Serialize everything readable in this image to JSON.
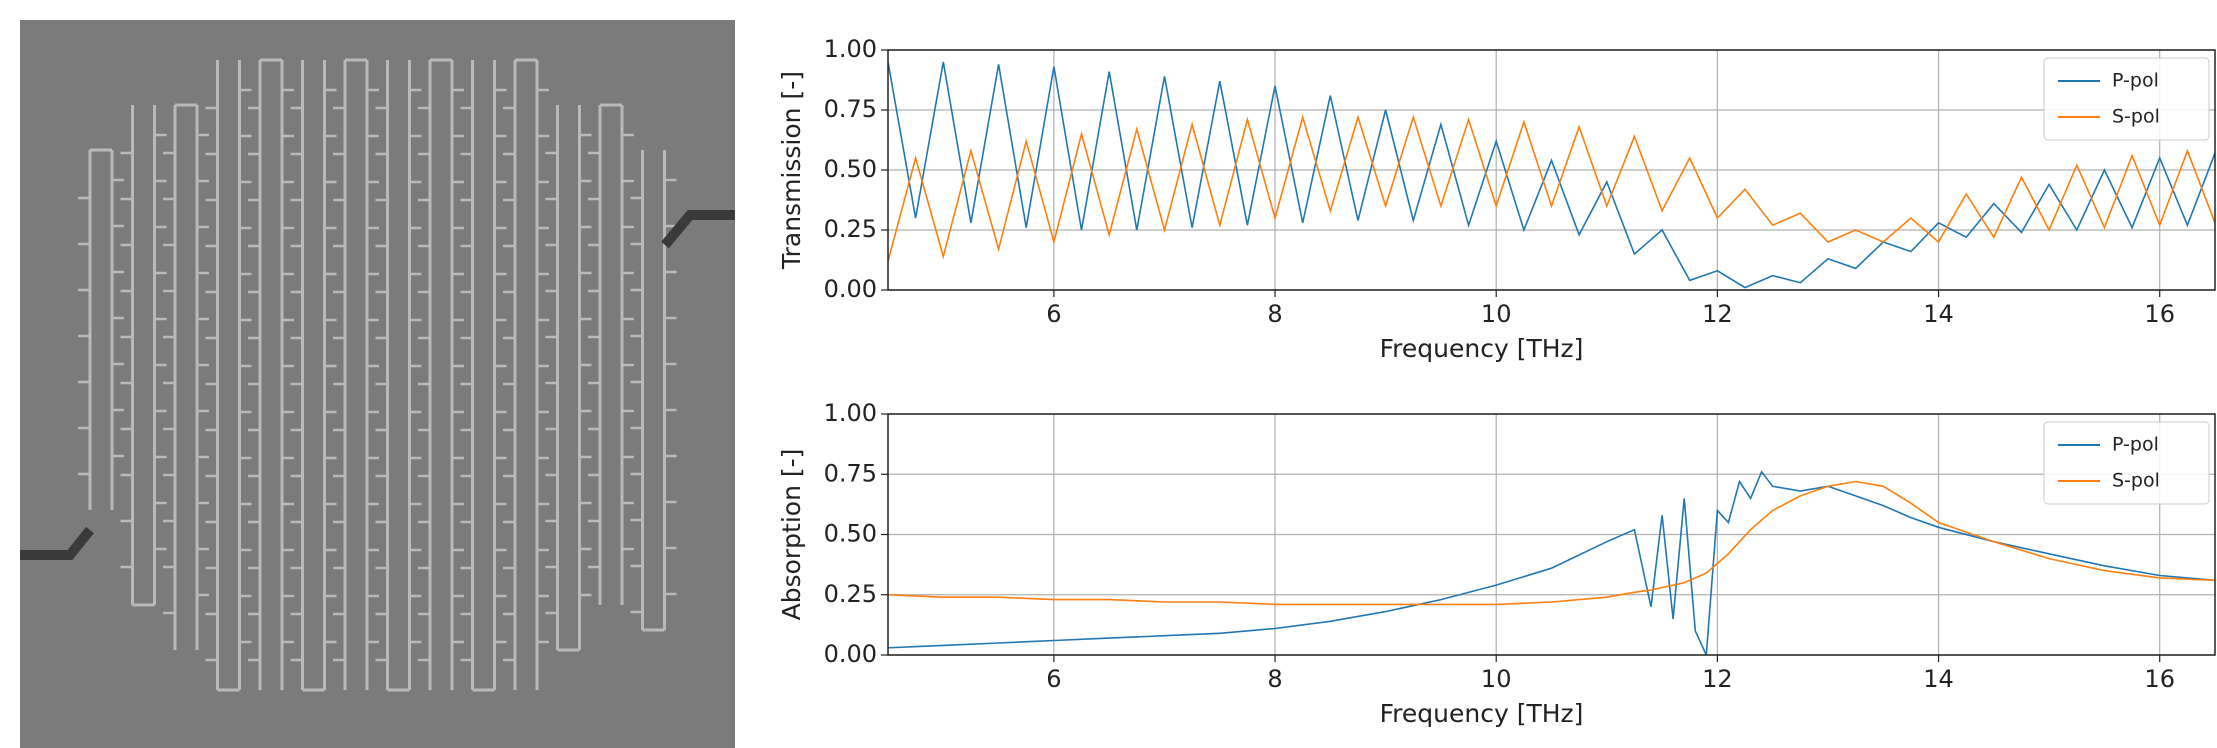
{
  "chart_data": [
    {
      "type": "line",
      "xlabel": "Frequency [THz]",
      "ylabel": "Transmission [-]",
      "x": [
        4.5,
        4.75,
        5,
        5.25,
        5.5,
        5.75,
        6,
        6.25,
        6.5,
        6.75,
        7,
        7.25,
        7.5,
        7.75,
        8,
        8.25,
        8.5,
        8.75,
        9,
        9.25,
        9.5,
        9.75,
        10,
        10.25,
        10.5,
        10.75,
        11,
        11.25,
        11.5,
        11.75,
        12,
        12.25,
        12.5,
        12.75,
        13,
        13.25,
        13.5,
        13.75,
        14,
        14.25,
        14.5,
        14.75,
        15,
        15.25,
        15.5,
        15.75,
        16,
        16.25,
        16.5
      ],
      "series": [
        {
          "name": "P-pol",
          "color": "#1f77b4",
          "values": [
            0.95,
            0.3,
            0.95,
            0.28,
            0.94,
            0.26,
            0.93,
            0.25,
            0.91,
            0.25,
            0.89,
            0.26,
            0.87,
            0.27,
            0.85,
            0.28,
            0.81,
            0.29,
            0.75,
            0.29,
            0.69,
            0.27,
            0.62,
            0.25,
            0.54,
            0.23,
            0.45,
            0.15,
            0.25,
            0.04,
            0.08,
            0.01,
            0.06,
            0.03,
            0.13,
            0.09,
            0.2,
            0.16,
            0.28,
            0.22,
            0.36,
            0.24,
            0.44,
            0.25,
            0.5,
            0.26,
            0.55,
            0.27,
            0.57
          ]
        },
        {
          "name": "S-pol",
          "color": "#ff7f0e",
          "values": [
            0.12,
            0.55,
            0.14,
            0.58,
            0.17,
            0.62,
            0.2,
            0.65,
            0.23,
            0.67,
            0.25,
            0.69,
            0.27,
            0.71,
            0.3,
            0.72,
            0.33,
            0.72,
            0.35,
            0.72,
            0.35,
            0.71,
            0.35,
            0.7,
            0.35,
            0.68,
            0.35,
            0.64,
            0.33,
            0.55,
            0.3,
            0.42,
            0.27,
            0.32,
            0.2,
            0.25,
            0.2,
            0.3,
            0.2,
            0.4,
            0.22,
            0.47,
            0.25,
            0.52,
            0.26,
            0.56,
            0.27,
            0.58,
            0.28
          ]
        }
      ],
      "xlim": [
        4.5,
        16.5
      ],
      "ylim": [
        0,
        1
      ],
      "xticks": [
        6,
        8,
        10,
        12,
        14,
        16
      ],
      "yticks": [
        {
          "value": 0,
          "label": "0.00"
        },
        {
          "value": 0.25,
          "label": "0.25"
        },
        {
          "value": 0.5,
          "label": "0.50"
        },
        {
          "value": 0.75,
          "label": "0.75"
        },
        {
          "value": 1,
          "label": "1.00"
        }
      ],
      "grid": true,
      "legend": "upper right"
    },
    {
      "type": "line",
      "xlabel": "Frequency [THz]",
      "ylabel": "Absorption [-]",
      "x": [
        4.5,
        5,
        5.5,
        6,
        6.5,
        7,
        7.5,
        8,
        8.5,
        9,
        9.5,
        10,
        10.5,
        11,
        11.25,
        11.4,
        11.5,
        11.6,
        11.7,
        11.8,
        11.9,
        12,
        12.1,
        12.2,
        12.3,
        12.4,
        12.5,
        12.75,
        13,
        13.25,
        13.5,
        13.75,
        14,
        14.5,
        15,
        15.5,
        16,
        16.5
      ],
      "series": [
        {
          "name": "P-pol",
          "color": "#1f77b4",
          "values": [
            0.03,
            0.04,
            0.05,
            0.06,
            0.07,
            0.08,
            0.09,
            0.11,
            0.14,
            0.18,
            0.23,
            0.29,
            0.36,
            0.47,
            0.52,
            0.2,
            0.58,
            0.15,
            0.65,
            0.1,
            0,
            0.6,
            0.55,
            0.72,
            0.65,
            0.76,
            0.7,
            0.68,
            0.7,
            0.66,
            0.62,
            0.57,
            0.53,
            0.47,
            0.42,
            0.37,
            0.33,
            0.31
          ]
        },
        {
          "name": "S-pol",
          "color": "#ff7f0e",
          "values": [
            0.25,
            0.24,
            0.24,
            0.23,
            0.23,
            0.22,
            0.22,
            0.21,
            0.21,
            0.21,
            0.21,
            0.21,
            0.22,
            0.24,
            0.26,
            0.27,
            0.28,
            0.29,
            0.3,
            0.32,
            0.34,
            0.38,
            0.42,
            0.47,
            0.52,
            0.56,
            0.6,
            0.66,
            0.7,
            0.72,
            0.7,
            0.63,
            0.55,
            0.47,
            0.4,
            0.35,
            0.32,
            0.31
          ]
        }
      ],
      "xlim": [
        4.5,
        16.5
      ],
      "ylim": [
        0,
        1
      ],
      "xticks": [
        6,
        8,
        10,
        12,
        14,
        16
      ],
      "yticks": [
        {
          "value": 0,
          "label": "0.00"
        },
        {
          "value": 0.25,
          "label": "0.25"
        },
        {
          "value": 0.5,
          "label": "0.50"
        },
        {
          "value": 0.75,
          "label": "0.75"
        },
        {
          "value": 1,
          "label": "1.00"
        }
      ],
      "grid": true,
      "legend": "upper right"
    }
  ]
}
